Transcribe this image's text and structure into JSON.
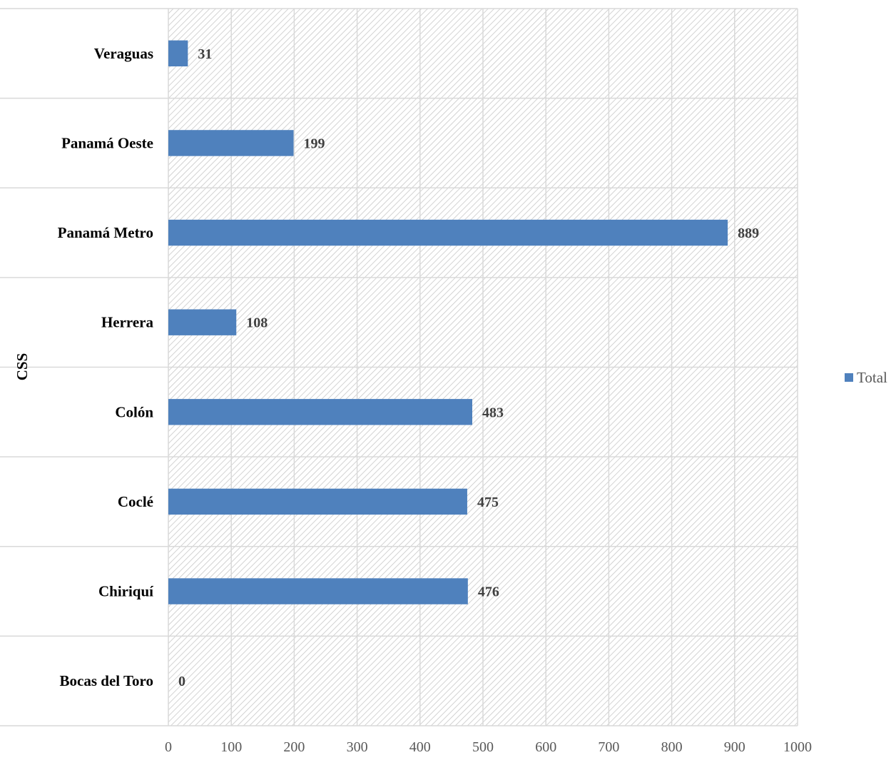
{
  "chart_data": {
    "type": "bar",
    "orientation": "horizontal",
    "title": "",
    "xlabel": "",
    "ylabel": "CSS",
    "categories": [
      "Bocas del Toro",
      "Chiriquí",
      "Coclé",
      "Colón",
      "Herrera",
      "Panamá Metro",
      "Panamá Oeste",
      "Veraguas"
    ],
    "series": [
      {
        "name": "Total",
        "values": [
          0,
          476,
          475,
          483,
          108,
          889,
          199,
          31
        ],
        "color": "#4f81bd"
      }
    ],
    "xlim": [
      0,
      1000
    ],
    "xticks": [
      "0",
      "100",
      "200",
      "300",
      "400",
      "500",
      "600",
      "700",
      "800",
      "900",
      "1000"
    ],
    "grid": true,
    "plot_background": "hatched",
    "data_labels": true,
    "legend_position": "right"
  }
}
